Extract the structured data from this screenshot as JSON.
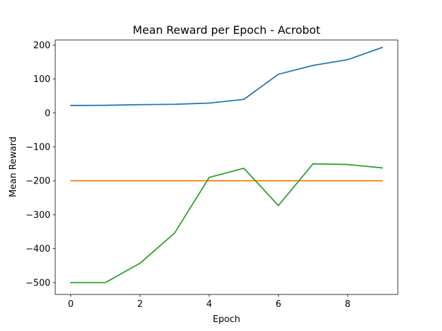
{
  "chart_data": {
    "type": "line",
    "title": "Mean Reward per Epoch - Acrobot",
    "xlabel": "Epoch",
    "ylabel": "Mean Reward",
    "x": [
      0,
      1,
      2,
      3,
      4,
      5,
      6,
      7,
      8,
      9
    ],
    "xlim": [
      -0.45,
      9.45
    ],
    "ylim": [
      -535,
      215
    ],
    "xticks": [
      0,
      2,
      4,
      6,
      8
    ],
    "yticks": [
      -500,
      -400,
      -300,
      -200,
      -100,
      0,
      100,
      200
    ],
    "ytick_labels": [
      "−500",
      "−400",
      "−300",
      "−200",
      "−100",
      "0",
      "100",
      "200"
    ],
    "grid": false,
    "series": [
      {
        "color": "#1f77b4",
        "values": [
          22,
          22.5,
          24.5,
          25.5,
          29,
          40,
          114,
          140,
          157,
          193
        ]
      },
      {
        "color": "#ff7f0e",
        "values": [
          -200,
          -200,
          -200,
          -200,
          -200,
          -200,
          -200,
          -200,
          -200,
          -200
        ]
      },
      {
        "color": "#2ca02c",
        "values": [
          -500,
          -500,
          -443,
          -354,
          -190,
          -163,
          -273,
          -150,
          -152,
          -162
        ]
      }
    ]
  }
}
